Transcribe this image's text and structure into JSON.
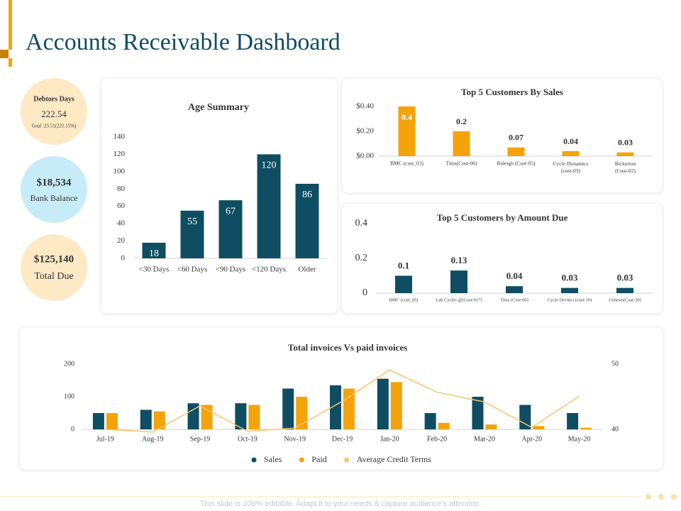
{
  "title": "Accounts Receivable Dashboard",
  "kpis": [
    {
      "label": "Debtors Days",
      "value": "222.54",
      "note": "Goal :23.51(221.15%)"
    },
    {
      "value": "$18,534",
      "label": "Bank Balance"
    },
    {
      "value": "$125,140",
      "label": "Total Due"
    }
  ],
  "footer": "This slide is 100% editable. Adapt it to your needs & capture audience’s attention.",
  "chart_data": [
    {
      "type": "bar",
      "title": "Age Summary",
      "categories": [
        "<30 Days",
        "<60 Days",
        "<90 Days",
        "<120 Days",
        "Older"
      ],
      "values": [
        18,
        55,
        67,
        120,
        86
      ],
      "color": "#0f4d63",
      "ylim": [
        0,
        140
      ],
      "yticks": [
        0,
        20,
        40,
        60,
        80,
        100,
        120,
        140
      ]
    },
    {
      "type": "bar",
      "title": "Top 5 Customers By Sales",
      "categories": [
        "BMC (cust_03)",
        "Titus(Cust-06)",
        "Raleigh (Cust-05)",
        "Cycle Dynamics (cust-03)",
        "Bickerton (Cust-02)"
      ],
      "values": [
        0.4,
        0.2,
        0.07,
        0.04,
        0.03
      ],
      "color": "#f5a30a",
      "ylim": [
        0,
        0.4
      ],
      "yticks": [
        {
          "value": 0,
          "label": "$0.00"
        },
        {
          "value": 0.2,
          "label": "$0.20"
        },
        {
          "value": 0.4,
          "label": "$0.40"
        }
      ]
    },
    {
      "type": "bar",
      "title": "Top 5 Customers by Amount Due",
      "categories": [
        "BMC (cust_05)",
        "Lab Cycles @(Cust-017)",
        "Titus (Cust-06)",
        "Cycle Devinci (cust-10)",
        "Genesis(Cust-20)"
      ],
      "values": [
        0.1,
        0.13,
        0.04,
        0.03,
        0.03
      ],
      "color": "#0f4d63",
      "ylim": [
        0,
        0.4
      ],
      "yticks": [
        0,
        0.2,
        0.4
      ]
    },
    {
      "type": "bar",
      "title": "Total invoices Vs paid invoices",
      "categories": [
        "Jul-19",
        "Aug-19",
        "Sep-19",
        "Oct-19",
        "Nov-19",
        "Dec-19",
        "Jan-20",
        "Feb-20",
        "Mar-20",
        "Apr-20",
        "May-20"
      ],
      "series": [
        {
          "name": "Sales",
          "color": "#0f4d63",
          "values": [
            50,
            60,
            80,
            80,
            125,
            135,
            155,
            50,
            100,
            75,
            50
          ]
        },
        {
          "name": "Paid",
          "color": "#f5a30a",
          "values": [
            50,
            55,
            75,
            75,
            100,
            125,
            145,
            20,
            15,
            10,
            5
          ]
        },
        {
          "name": "Average Credit Terms",
          "color": "#f9c56b",
          "type": "line",
          "axis": "y2",
          "values": [
            40,
            39.6,
            43.6,
            39.7,
            40.2,
            44.3,
            49.1,
            45.7,
            44.2,
            40.3,
            45.1
          ]
        }
      ],
      "ylim": [
        0,
        200
      ],
      "yticks": [
        0,
        100,
        200
      ],
      "y2lim": [
        40,
        50
      ],
      "y2ticks": [
        40,
        50
      ]
    }
  ]
}
